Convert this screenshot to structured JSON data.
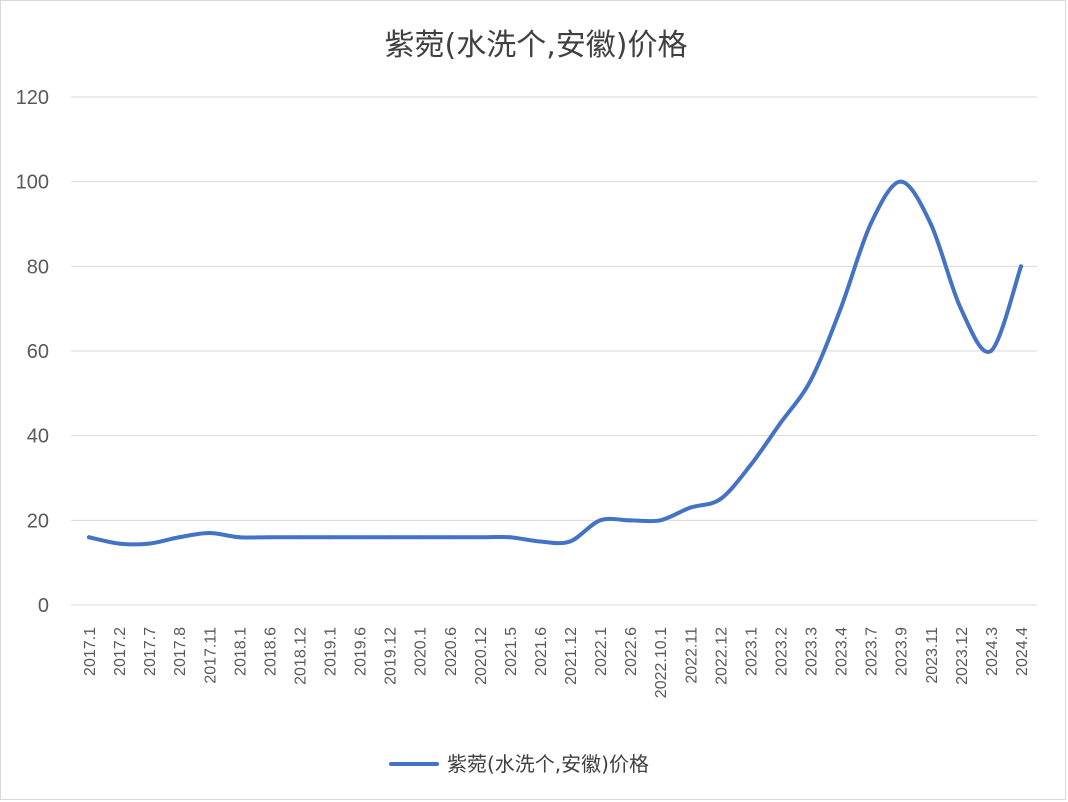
{
  "chart_data": {
    "type": "line",
    "title": "紫菀(水洗个,安徽)价格",
    "xlabel": "",
    "ylabel": "",
    "ylim": [
      0,
      120
    ],
    "yticks": [
      0,
      20,
      40,
      60,
      80,
      100,
      120
    ],
    "grid": true,
    "legend_position": "bottom",
    "categories": [
      "2017.1",
      "2017.2",
      "2017.7",
      "2017.8",
      "2017.11",
      "2018.1",
      "2018.6",
      "2018.12",
      "2019.1",
      "2019.6",
      "2019.12",
      "2020.1",
      "2020.6",
      "2020.12",
      "2021.5",
      "2021.6",
      "2021.12",
      "2022.1",
      "2022.6",
      "2022.10.1",
      "2022.11",
      "2022.12",
      "2023.1",
      "2023.2",
      "2023.3",
      "2023.4",
      "2023.7",
      "2023.9",
      "2023.11",
      "2023.12",
      "2024.3",
      "2024.4"
    ],
    "series": [
      {
        "name": "紫菀(水洗个,安徽)价格",
        "color": "#4472c4",
        "values": [
          16,
          14.5,
          14.5,
          16,
          17,
          16,
          16,
          16,
          16,
          16,
          16,
          16,
          16,
          16,
          16,
          15,
          15,
          20,
          20,
          20,
          23,
          25,
          33,
          43,
          53,
          70,
          90,
          100,
          90,
          70,
          60,
          80
        ]
      }
    ]
  }
}
